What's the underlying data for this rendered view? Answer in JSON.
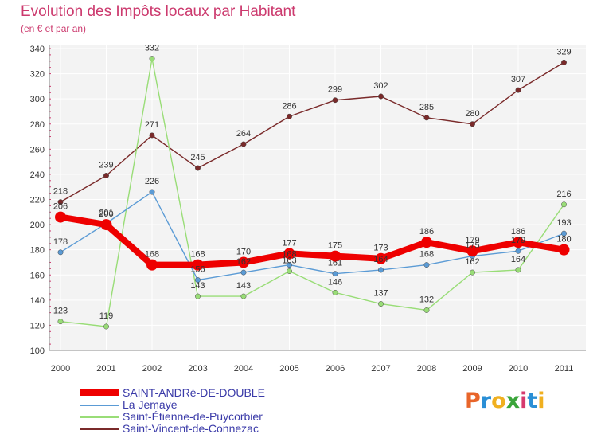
{
  "header": {
    "title": "Evolution des Impôts locaux par Habitant",
    "subtitle": "(en € et par an)"
  },
  "logo": {
    "letters": [
      "P",
      "r",
      "o",
      "x",
      "i",
      "t",
      "i"
    ],
    "colors": [
      "#e8652a",
      "#2a8fd6",
      "#f0b020",
      "#3aa53a",
      "#d63a6e",
      "#2a8fd6",
      "#f0b020"
    ]
  },
  "chart_data": {
    "type": "line",
    "title": "Evolution des Impôts locaux par Habitant",
    "subtitle": "(en € et par an)",
    "xlabel": "",
    "ylabel": "",
    "x": [
      "2000",
      "2001",
      "2002",
      "2003",
      "2004",
      "2005",
      "2006",
      "2007",
      "2008",
      "2009",
      "2010",
      "2011"
    ],
    "ylim": [
      100,
      340
    ],
    "yticks": [
      100,
      120,
      140,
      160,
      180,
      200,
      220,
      240,
      260,
      280,
      300,
      320,
      340
    ],
    "grid": true,
    "series": [
      {
        "name": "SAINT-ANDRé-DE-DOUBLE",
        "color": "#ee0000",
        "emphasis": true,
        "values": [
          206,
          200,
          168,
          168,
          170,
          177,
          175,
          173,
          186,
          179,
          186,
          180
        ],
        "labels": [
          "206",
          "200",
          "168",
          "168",
          "170",
          "177",
          "175",
          "173",
          "186",
          "179",
          "186",
          "180"
        ]
      },
      {
        "name": "La Jemaye",
        "color": "#5b9bd5",
        "emphasis": false,
        "values": [
          178,
          201,
          226,
          156,
          162,
          168,
          161,
          164,
          168,
          175,
          179,
          193
        ],
        "labels": [
          "178",
          "201",
          "226",
          "156",
          "162",
          "168",
          "161",
          "164",
          "168",
          "175",
          "179",
          "193"
        ]
      },
      {
        "name": "Saint-Étienne-de-Puycorbier",
        "color": "#99dd77",
        "emphasis": false,
        "values": [
          123,
          119,
          332,
          143,
          143,
          163,
          146,
          137,
          132,
          162,
          164,
          216
        ],
        "labels": [
          "123",
          "119",
          "332",
          "143",
          "143",
          "163",
          "146",
          "137",
          "132",
          "162",
          "164",
          "216"
        ]
      },
      {
        "name": "Saint-Vincent-de-Connezac",
        "color": "#7a2a2a",
        "emphasis": false,
        "values": [
          218,
          239,
          271,
          245,
          264,
          286,
          299,
          302,
          285,
          280,
          307,
          329
        ],
        "labels": [
          "218",
          "239",
          "271",
          "245",
          "264",
          "286",
          "299",
          "302",
          "285",
          "280",
          "307",
          "329"
        ]
      }
    ]
  }
}
